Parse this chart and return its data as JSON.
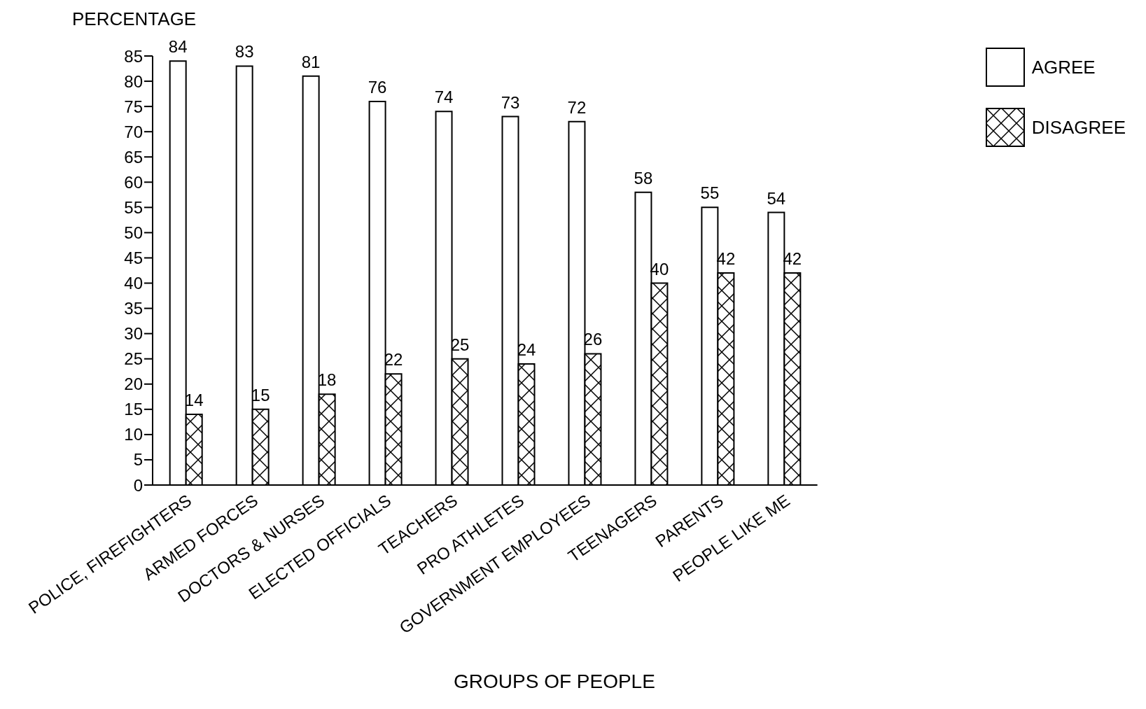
{
  "chart_data": {
    "type": "bar",
    "ylabel": "PERCENTAGE",
    "xlabel": "GROUPS OF PEOPLE",
    "categories": [
      "POLICE, FIREFIGHTERS",
      "ARMED FORCES",
      "DOCTORS & NURSES",
      "ELECTED OFFICIALS",
      "TEACHERS",
      "PRO ATHLETES",
      "GOVERNMENT EMPLOYEES",
      "TEENAGERS",
      "PARENTS",
      "PEOPLE LIKE ME"
    ],
    "series": [
      {
        "name": "AGREE",
        "color": "#ffffff",
        "values": [
          84,
          83,
          81,
          76,
          74,
          73,
          72,
          58,
          55,
          54
        ]
      },
      {
        "name": "DISAGREE",
        "color": "#000000",
        "values": [
          14,
          15,
          18,
          22,
          25,
          24,
          26,
          40,
          42,
          42
        ]
      }
    ],
    "ylim": [
      0,
      85
    ],
    "yticks": [
      0,
      5,
      10,
      15,
      20,
      25,
      30,
      35,
      40,
      45,
      50,
      55,
      60,
      65,
      70,
      75,
      80,
      85
    ],
    "data_labels": true,
    "grid": false,
    "legend": "top right"
  }
}
